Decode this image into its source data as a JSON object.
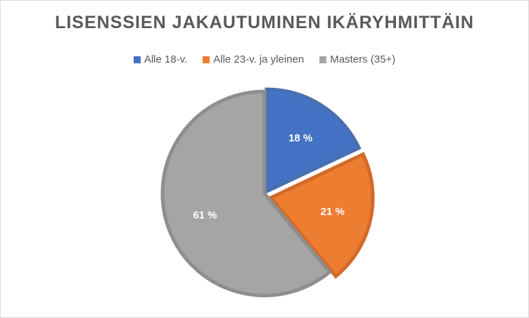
{
  "chart_data": {
    "type": "pie",
    "title": "LISENSSIEN JAKAUTUMINEN IKÄRYHMITTÄIN",
    "legend_position": "top",
    "categories": [
      "Alle 18-v.",
      "Alle 23-v. ja yleinen",
      "Masters (35+)"
    ],
    "values": [
      18,
      21,
      61
    ],
    "labels": [
      "18 %",
      "21 %",
      "61 %"
    ],
    "colors": [
      "#4472c4",
      "#ed7d31",
      "#a5a5a5"
    ],
    "border_colors": [
      "#4a6fb0",
      "#d2692a",
      "#8e8e8e"
    ]
  }
}
